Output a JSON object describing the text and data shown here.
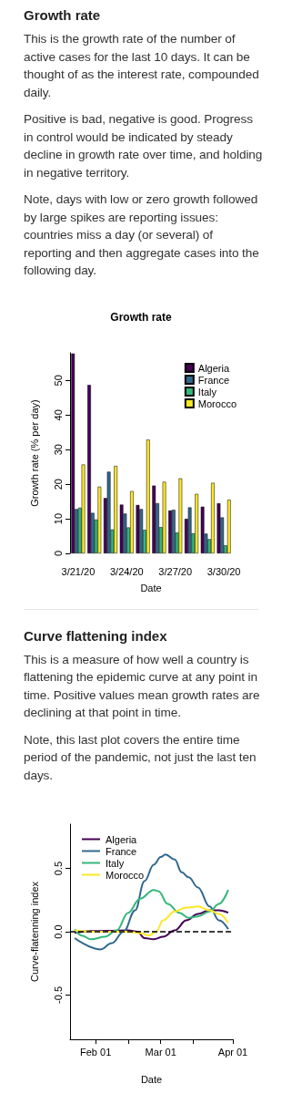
{
  "chart_data": [
    {
      "type": "bar",
      "title": "Growth rate",
      "subtitle": "Growth rate",
      "annotations": [
        "This is the growth rate of the number of active cases for the last 10 days. It can be thought of as the interest rate, compounded daily.",
        "Positive is bad, negative is good. Progress in control would be indicated by steady decline in growth rate over time, and holding in negative territory.",
        "Note, days with low or zero growth followed by large spikes are reporting issues: countries miss a day (or several) of reporting and then aggregate cases into the following day."
      ],
      "xlabel": "Date",
      "ylabel": "Growth rate (% per day)",
      "categories": [
        "3/21/20",
        null,
        null,
        "3/24/20",
        null,
        null,
        "3/27/20",
        null,
        null,
        "3/30/20"
      ],
      "series": [
        {
          "name": "Algeria",
          "color": "#440154",
          "values": [
            57.8,
            48.7,
            16.0,
            14.1,
            14.0,
            19.6,
            12.4,
            10.0,
            13.5,
            14.5
          ]
        },
        {
          "name": "France",
          "color": "#31688e",
          "values": [
            12.8,
            11.7,
            23.6,
            11.5,
            12.8,
            14.5,
            12.6,
            13.3,
            5.7,
            10.4
          ]
        },
        {
          "name": "Italy",
          "color": "#35b779",
          "values": [
            13.2,
            9.8,
            6.9,
            7.5,
            6.8,
            7.6,
            6.0,
            5.8,
            4.1,
            2.3
          ]
        },
        {
          "name": "Morocco",
          "color": "#fde725",
          "values": [
            25.7,
            19.3,
            25.3,
            18.0,
            32.9,
            20.7,
            21.7,
            17.2,
            20.4,
            15.5
          ]
        }
      ],
      "ylim": [
        0,
        58
      ],
      "yticks": [
        0,
        10,
        20,
        30,
        40,
        50
      ],
      "grid": false,
      "legend": "top right"
    },
    {
      "type": "line",
      "subtitle": "Curve flattening index",
      "annotations": [
        "This is a measure of how well a country is flattening the epidemic curve at any point in time. Positive values mean growth rates are declining at that point in time.",
        "Note, this last plot covers the entire time period of the pandemic, not just the last ten days."
      ],
      "xlabel": "Date",
      "ylabel": "Curve-flatenning index",
      "series": [
        {
          "name": "Algeria",
          "color": "#440154",
          "x": [
            "--01-23",
            "--01-30",
            "--02-06",
            "--02-15",
            "--02-19",
            "--02-22",
            "--02-26",
            "--03-02",
            "--03-07",
            "--03-12",
            "--03-17",
            "--03-22",
            "--03-26",
            "--03-30"
          ],
          "values": [
            -0.01,
            0.005,
            0.007,
            0.01,
            0,
            -0.05,
            -0.06,
            -0.04,
            0.01,
            0.09,
            0.14,
            0.17,
            0.17,
            0.15
          ]
        },
        {
          "name": "France",
          "color": "#31688e",
          "x": [
            "--01-23",
            "--02-03",
            "--02-08",
            "--02-13",
            "--02-18",
            "--02-22",
            "--02-26",
            "--03-01",
            "--03-03",
            "--03-07",
            "--03-10",
            "--03-13",
            "--03-17",
            "--03-22",
            "--03-26",
            "--03-30"
          ],
          "values": [
            -0.05,
            -0.14,
            -0.09,
            0,
            0.17,
            0.4,
            0.53,
            0.59,
            0.61,
            0.57,
            0.47,
            0.43,
            0.35,
            0.2,
            0.09,
            0.02
          ]
        },
        {
          "name": "Italy",
          "color": "#35b779",
          "x": [
            "--01-23",
            "--01-26",
            "--01-30",
            "--02-05",
            "--02-10",
            "--02-15",
            "--02-20",
            "--02-26",
            "--02-28",
            "--03-04",
            "--03-09",
            "--03-13",
            "--03-17",
            "--03-22",
            "--03-26",
            "--03-30"
          ],
          "values": [
            0.02,
            -0.03,
            -0.06,
            -0.04,
            0.01,
            0.15,
            0.26,
            0.33,
            0.32,
            0.22,
            0.15,
            0.11,
            0.12,
            0.16,
            0.22,
            0.33
          ]
        },
        {
          "name": "Morocco",
          "color": "#fde725",
          "x": [
            "--01-23",
            "--01-30",
            "--02-06",
            "--02-15",
            "--02-20",
            "--02-24",
            "--02-27",
            "--03-02",
            "--03-07",
            "--03-12",
            "--03-17",
            "--03-22",
            "--03-26",
            "--03-30"
          ],
          "values": [
            0.01,
            0,
            0,
            0,
            -0.01,
            -0.03,
            0,
            0.09,
            0.16,
            0.19,
            0.2,
            0.17,
            0.14,
            0.07
          ]
        }
      ],
      "xlim": [
        "--01-21",
        "--04-01"
      ],
      "xticks": [
        {
          "value": "--02-01",
          "label": "Feb 01"
        },
        {
          "value": "--02-15",
          "label": null
        },
        {
          "value": "--03-01",
          "label": "Mar 01"
        },
        {
          "value": "--03-15",
          "label": null
        },
        {
          "value": "--04-01",
          "label": "Apr 01"
        }
      ],
      "ylim": [
        -0.85,
        0.85
      ],
      "yticks": [
        {
          "value": -0.5,
          "label": "-0.5"
        },
        {
          "value": 0,
          "label": "0.0"
        },
        {
          "value": 0.5,
          "label": "0.5"
        }
      ],
      "ref_lines": [
        {
          "axis": "y",
          "value": 0,
          "color": "#000000",
          "line_style": "dashed"
        }
      ],
      "grid": false,
      "legend": "top left"
    }
  ]
}
